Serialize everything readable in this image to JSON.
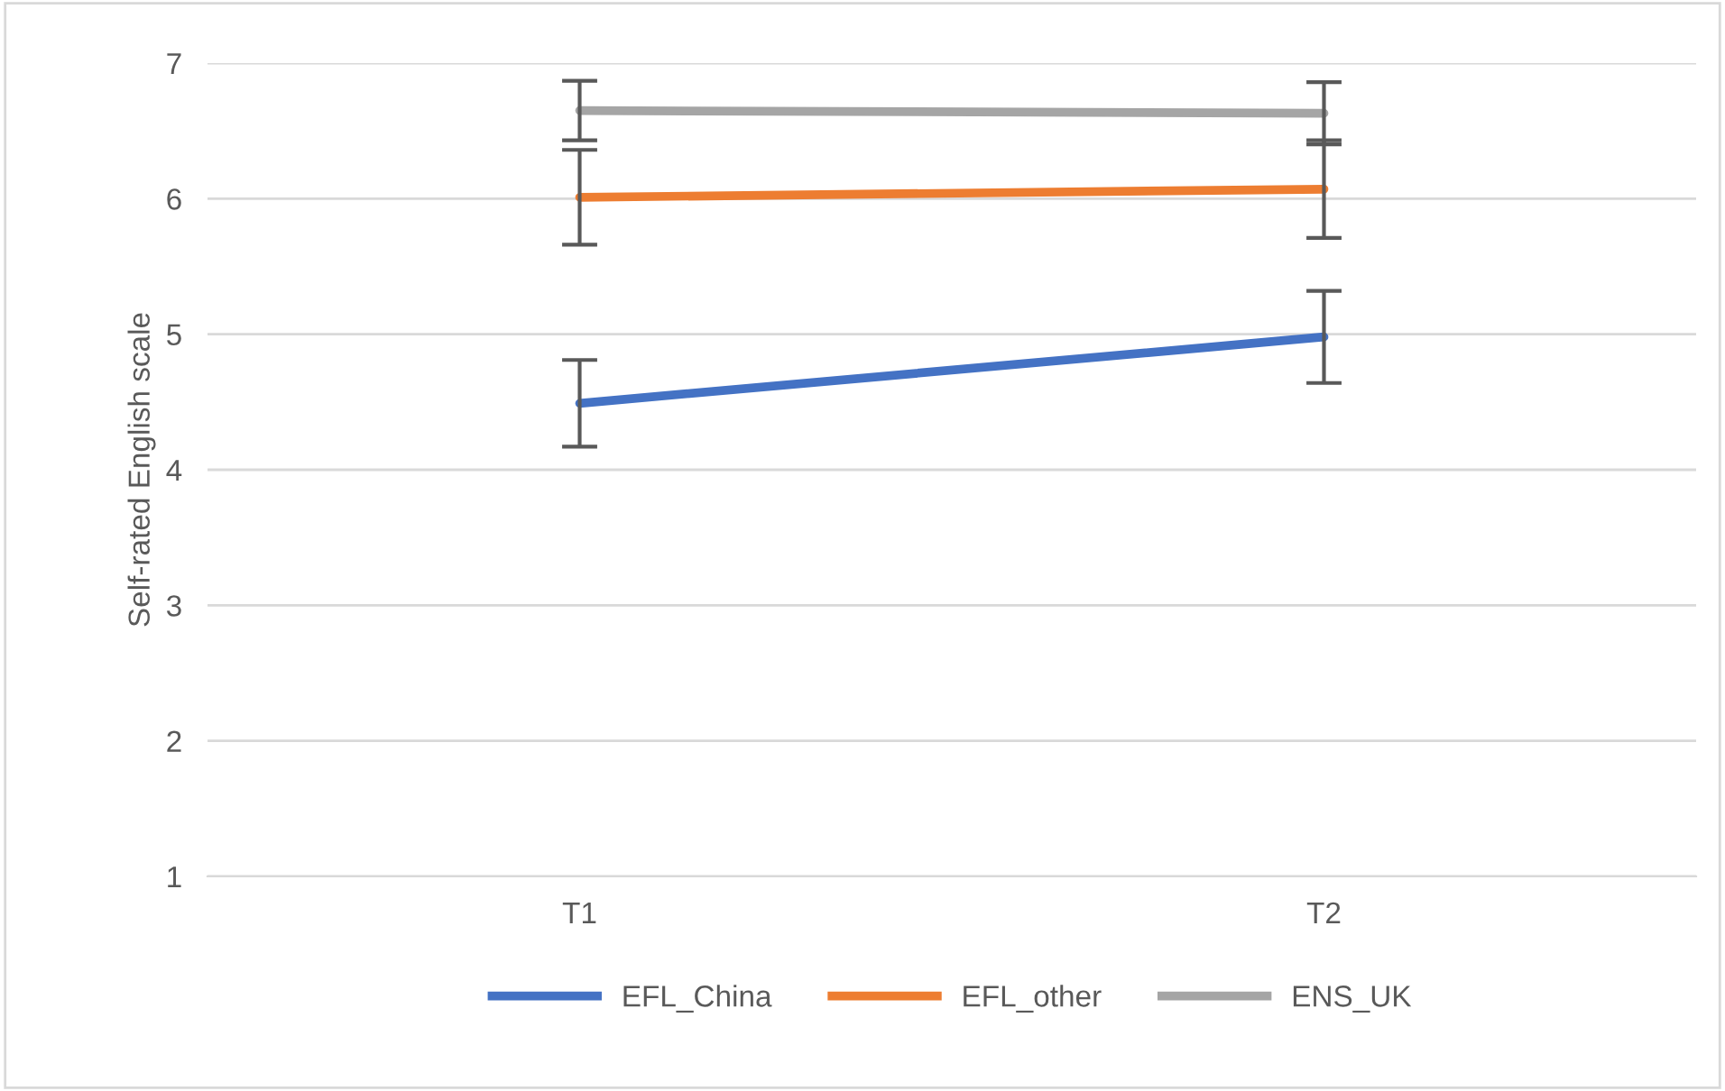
{
  "chart_data": {
    "type": "line",
    "ylabel": "Self-rated English scale",
    "categories": [
      "T1",
      "T2"
    ],
    "ylim": [
      1,
      7
    ],
    "yticks": [
      1,
      2,
      3,
      4,
      5,
      6,
      7
    ],
    "grid": "y",
    "legend": "bottom",
    "marker": "none",
    "line_style": "solid",
    "series": [
      {
        "name": "EFL_China",
        "color": "#4472c4",
        "values": [
          4.49,
          4.98
        ],
        "errors": [
          0.32,
          0.34
        ]
      },
      {
        "name": "EFL_other",
        "color": "#ed7d31",
        "values": [
          6.01,
          6.07
        ],
        "errors": [
          0.35,
          0.36
        ]
      },
      {
        "name": "ENS_UK",
        "color": "#a5a5a5",
        "values": [
          6.65,
          6.63
        ],
        "errors": [
          0.22,
          0.23
        ]
      }
    ]
  }
}
